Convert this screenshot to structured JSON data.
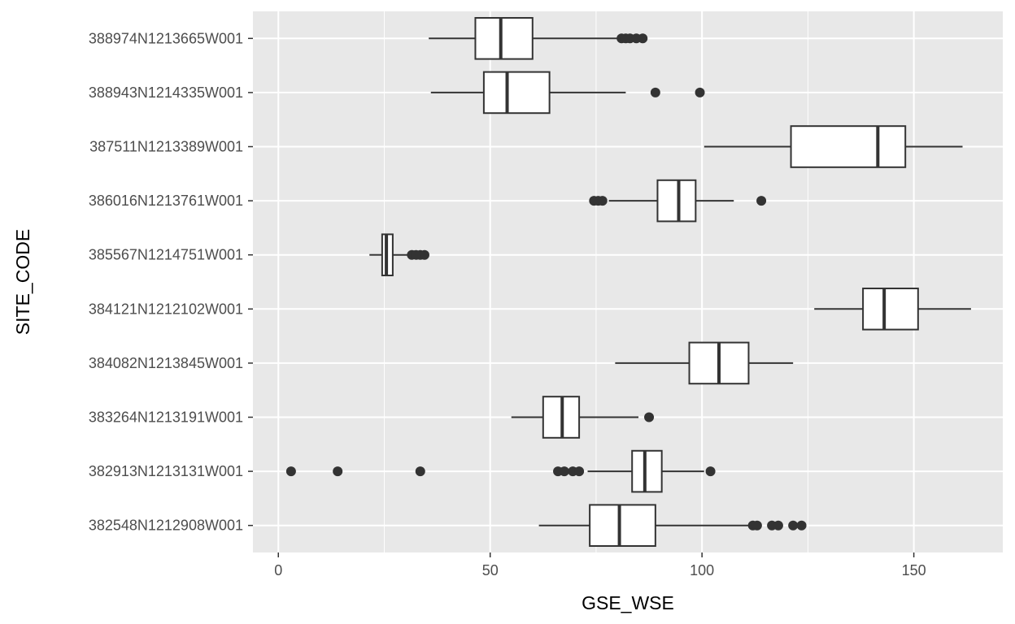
{
  "chart_data": {
    "type": "boxplot",
    "orientation": "horizontal",
    "xlabel": "GSE_WSE",
    "ylabel": "SITE_CODE",
    "xlim": [
      -6,
      171
    ],
    "xticks": [
      0,
      50,
      100,
      150
    ],
    "grid": true,
    "legend": "none",
    "colors": {
      "panel_background": "#e8e8e8",
      "gridline": "#ffffff",
      "box_fill": "#ffffff",
      "box_stroke": "#333333",
      "outlier": "#333333",
      "tick_text": "#4d4d4d",
      "title_text": "#000000"
    },
    "categories": [
      "388974N1213665W001",
      "388943N1214335W001",
      "387511N1213389W001",
      "386016N1213761W001",
      "385567N1214751W001",
      "384121N1212102W001",
      "384082N1213845W001",
      "383264N1213191W001",
      "382913N1213131W001",
      "382548N1212908W001"
    ],
    "boxes": [
      {
        "site": "388974N1213665W001",
        "whisker_low": 35.5,
        "q1": 46.5,
        "median": 52.5,
        "q3": 60.0,
        "whisker_high": 80.5,
        "outliers": [
          81.0,
          82.0,
          83.0,
          84.5,
          86.0
        ]
      },
      {
        "site": "388943N1214335W001",
        "whisker_low": 36.0,
        "q1": 48.5,
        "median": 54.0,
        "q3": 64.0,
        "whisker_high": 82.0,
        "outliers": [
          89.0,
          99.5
        ]
      },
      {
        "site": "387511N1213389W001",
        "whisker_low": 100.5,
        "q1": 121.0,
        "median": 141.5,
        "q3": 148.0,
        "whisker_high": 161.5,
        "outliers": []
      },
      {
        "site": "386016N1213761W001",
        "whisker_low": 78.0,
        "q1": 89.5,
        "median": 94.5,
        "q3": 98.5,
        "whisker_high": 107.5,
        "outliers": [
          74.5,
          75.5,
          76.5,
          114.0
        ]
      },
      {
        "site": "385567N1214751W001",
        "whisker_low": 21.5,
        "q1": 24.5,
        "median": 25.5,
        "q3": 27.0,
        "whisker_high": 31.0,
        "outliers": [
          31.5,
          32.5,
          33.5,
          34.5
        ]
      },
      {
        "site": "384121N1212102W001",
        "whisker_low": 126.5,
        "q1": 138.0,
        "median": 143.0,
        "q3": 151.0,
        "whisker_high": 163.5,
        "outliers": []
      },
      {
        "site": "384082N1213845W001",
        "whisker_low": 79.5,
        "q1": 97.0,
        "median": 104.0,
        "q3": 111.0,
        "whisker_high": 121.5,
        "outliers": []
      },
      {
        "site": "383264N1213191W001",
        "whisker_low": 55.0,
        "q1": 62.5,
        "median": 67.0,
        "q3": 71.0,
        "whisker_high": 85.0,
        "outliers": [
          87.5
        ]
      },
      {
        "site": "382913N1213131W001",
        "whisker_low": 73.0,
        "q1": 83.5,
        "median": 86.5,
        "q3": 90.5,
        "whisker_high": 100.5,
        "outliers": [
          3.0,
          14.0,
          33.5,
          66.0,
          67.5,
          69.5,
          71.0,
          102.0
        ]
      },
      {
        "site": "382548N1212908W001",
        "whisker_low": 61.5,
        "q1": 73.5,
        "median": 80.5,
        "q3": 89.0,
        "whisker_high": 111.0,
        "outliers": [
          112.0,
          113.0,
          116.5,
          118.0,
          121.5,
          123.5
        ]
      }
    ]
  }
}
